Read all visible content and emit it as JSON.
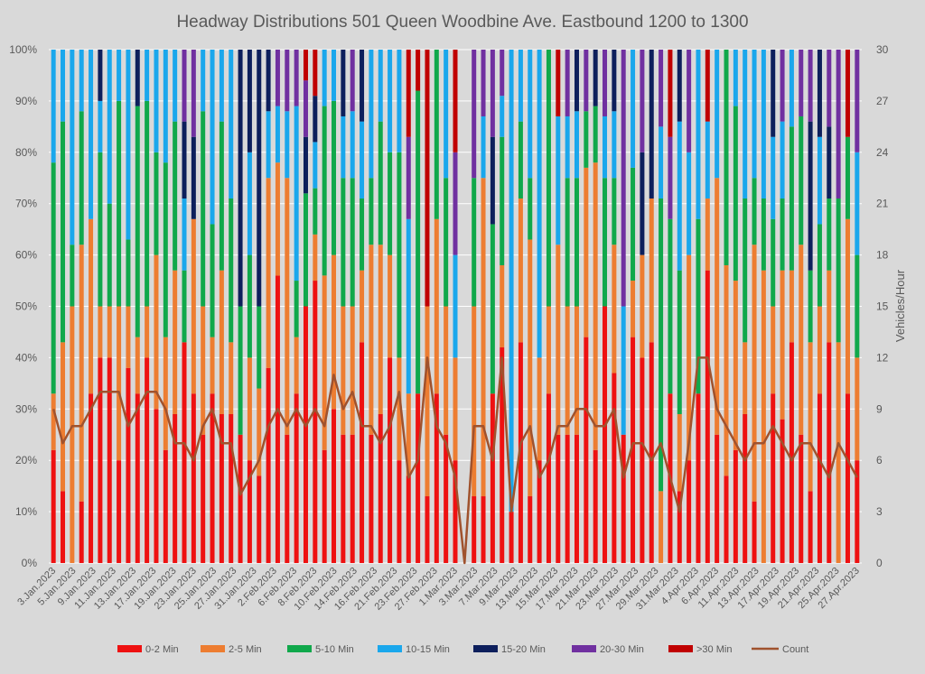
{
  "chart_data": {
    "type": "bar",
    "stacked": "percent",
    "title": "Headway Distributions 501 Queen  Woodbine Ave. Eastbound 1200 to 1300",
    "y2label": "Vehicles/Hour",
    "y_ticks": [
      "0%",
      "10%",
      "20%",
      "30%",
      "40%",
      "50%",
      "60%",
      "70%",
      "80%",
      "90%",
      "100%"
    ],
    "y2_ticks": [
      "0",
      "3",
      "6",
      "9",
      "12",
      "15",
      "18",
      "21",
      "24",
      "27",
      "30"
    ],
    "ylim": [
      0,
      100
    ],
    "y2lim": [
      0,
      30
    ],
    "grid": true,
    "legend_position": "bottom",
    "x_tick_labels": [
      "3.Jan.2023",
      "5.Jan.2023",
      "9.Jan.2023",
      "11.Jan.2023",
      "13.Jan.2023",
      "17.Jan.2023",
      "19.Jan.2023",
      "23.Jan.2023",
      "25.Jan.2023",
      "27.Jan.2023",
      "31.Jan.2023",
      "2.Feb.2023",
      "6.Feb.2023",
      "8.Feb.2023",
      "10.Feb.2023",
      "14.Feb.2023",
      "16.Feb.2023",
      "21.Feb.2023",
      "23.Feb.2023",
      "27.Feb.2023",
      "1.Mar.2023",
      "3.Mar.2023",
      "7.Mar.2023",
      "9.Mar.2023",
      "13.Mar.2023",
      "15.Mar.2023",
      "17.Mar.2023",
      "21.Mar.2023",
      "23.Mar.2023",
      "27.Mar.2023",
      "29.Mar.2023",
      "31.Mar.2023",
      "4.Apr.2023",
      "6.Apr.2023",
      "11.Apr.2023",
      "13.Apr.2023",
      "17.Apr.2023",
      "19.Apr.2023",
      "21.Apr.2023",
      "25.Apr.2023",
      "27.Apr.2023"
    ],
    "series_names": [
      "0-2 Min",
      "2-5 Min",
      "5-10 Min",
      "10-15 Min",
      "15-20 Min",
      "20-30 Min",
      ">30 Min"
    ],
    "count_label": "Count",
    "colors": [
      "#ee1111",
      "#ed7d31",
      "#10a84b",
      "#1aa7ec",
      "#0d1f5c",
      "#7030a0",
      "#c00000"
    ],
    "count_color": "#a0522d",
    "bars": [
      [
        22,
        11,
        45,
        22,
        0,
        0,
        0
      ],
      [
        14,
        29,
        43,
        14,
        0,
        0,
        0
      ],
      [
        0,
        50,
        12,
        38,
        0,
        0,
        0
      ],
      [
        12,
        50,
        26,
        12,
        0,
        0,
        0
      ],
      [
        33,
        34,
        0,
        33,
        0,
        0,
        0
      ],
      [
        40,
        10,
        30,
        10,
        10,
        0,
        0
      ],
      [
        40,
        10,
        20,
        30,
        0,
        0,
        0
      ],
      [
        20,
        30,
        40,
        10,
        0,
        0,
        0
      ],
      [
        38,
        12,
        13,
        37,
        0,
        0,
        0
      ],
      [
        33,
        11,
        45,
        0,
        11,
        0,
        0
      ],
      [
        40,
        10,
        40,
        10,
        0,
        0,
        0
      ],
      [
        30,
        30,
        20,
        20,
        0,
        0,
        0
      ],
      [
        22,
        22,
        34,
        22,
        0,
        0,
        0
      ],
      [
        29,
        28,
        29,
        14,
        0,
        0,
        0
      ],
      [
        43,
        0,
        14,
        14,
        15,
        14,
        0
      ],
      [
        33,
        34,
        0,
        0,
        16,
        17,
        0
      ],
      [
        25,
        25,
        38,
        12,
        0,
        0,
        0
      ],
      [
        33,
        11,
        22,
        34,
        0,
        0,
        0
      ],
      [
        29,
        28,
        29,
        14,
        0,
        0,
        0
      ],
      [
        29,
        14,
        28,
        29,
        0,
        0,
        0
      ],
      [
        25,
        0,
        25,
        0,
        50,
        0,
        0
      ],
      [
        20,
        20,
        20,
        20,
        20,
        0,
        0
      ],
      [
        17,
        17,
        16,
        0,
        50,
        0,
        0
      ],
      [
        38,
        37,
        0,
        13,
        12,
        0,
        0
      ],
      [
        56,
        22,
        0,
        11,
        0,
        11,
        0
      ],
      [
        25,
        50,
        0,
        13,
        0,
        12,
        0
      ],
      [
        33,
        11,
        11,
        34,
        0,
        11,
        0
      ],
      [
        50,
        0,
        22,
        0,
        11,
        11,
        6
      ],
      [
        55,
        9,
        9,
        9,
        9,
        0,
        9
      ],
      [
        22,
        34,
        33,
        11,
        0,
        0,
        0
      ],
      [
        30,
        30,
        30,
        10,
        0,
        0,
        0
      ],
      [
        25,
        25,
        25,
        12,
        13,
        0,
        0
      ],
      [
        25,
        25,
        25,
        13,
        0,
        12,
        0
      ],
      [
        43,
        14,
        14,
        15,
        14,
        0,
        0
      ],
      [
        25,
        37,
        13,
        25,
        0,
        0,
        0
      ],
      [
        29,
        33,
        24,
        14,
        0,
        0,
        0
      ],
      [
        40,
        20,
        20,
        20,
        0,
        0,
        0
      ],
      [
        20,
        20,
        40,
        20,
        0,
        0,
        0
      ],
      [
        17,
        16,
        0,
        34,
        0,
        16,
        17
      ],
      [
        33,
        0,
        59,
        0,
        0,
        0,
        8
      ],
      [
        13,
        37,
        0,
        0,
        0,
        0,
        50
      ],
      [
        33,
        34,
        33,
        0,
        0,
        0,
        0
      ],
      [
        25,
        25,
        25,
        25,
        0,
        0,
        0
      ],
      [
        20,
        20,
        0,
        20,
        0,
        20,
        20
      ],
      [
        0,
        0,
        0,
        0,
        0,
        0,
        0
      ],
      [
        13,
        37,
        25,
        0,
        0,
        25,
        0
      ],
      [
        13,
        62,
        0,
        12,
        0,
        13,
        0
      ],
      [
        33,
        0,
        33,
        0,
        17,
        17,
        0
      ],
      [
        42,
        16,
        25,
        8,
        0,
        9,
        0
      ],
      [
        10,
        0,
        0,
        90,
        0,
        0,
        0
      ],
      [
        43,
        28,
        15,
        14,
        0,
        0,
        0
      ],
      [
        13,
        50,
        12,
        25,
        0,
        0,
        0
      ],
      [
        20,
        20,
        0,
        60,
        0,
        0,
        0
      ],
      [
        33,
        17,
        50,
        0,
        0,
        0,
        0
      ],
      [
        25,
        37,
        0,
        25,
        0,
        0,
        13
      ],
      [
        25,
        25,
        25,
        12,
        0,
        13,
        0
      ],
      [
        25,
        25,
        25,
        13,
        12,
        0,
        0
      ],
      [
        44,
        33,
        11,
        0,
        0,
        12,
        0
      ],
      [
        22,
        56,
        11,
        0,
        11,
        0,
        0
      ],
      [
        50,
        0,
        25,
        12,
        0,
        13,
        0
      ],
      [
        37,
        25,
        13,
        13,
        12,
        0,
        0
      ],
      [
        25,
        0,
        0,
        25,
        0,
        50,
        0
      ],
      [
        44,
        11,
        22,
        23,
        0,
        0,
        0
      ],
      [
        40,
        20,
        0,
        0,
        20,
        20,
        0
      ],
      [
        43,
        28,
        0,
        0,
        29,
        0,
        0
      ],
      [
        0,
        14,
        57,
        14,
        0,
        15,
        0
      ],
      [
        33,
        0,
        34,
        0,
        0,
        16,
        17
      ],
      [
        14,
        15,
        28,
        29,
        14,
        0,
        0
      ],
      [
        20,
        40,
        0,
        20,
        0,
        20,
        0
      ],
      [
        33,
        0,
        34,
        33,
        0,
        0,
        0
      ],
      [
        57,
        14,
        0,
        15,
        0,
        0,
        14
      ],
      [
        25,
        50,
        0,
        25,
        0,
        0,
        0
      ],
      [
        17,
        41,
        42,
        0,
        0,
        0,
        0
      ],
      [
        22,
        33,
        34,
        11,
        0,
        0,
        0
      ],
      [
        29,
        14,
        28,
        29,
        0,
        0,
        0
      ],
      [
        12,
        50,
        13,
        25,
        0,
        0,
        0
      ],
      [
        0,
        57,
        14,
        29,
        0,
        0,
        0
      ],
      [
        33,
        17,
        17,
        16,
        17,
        0,
        0
      ],
      [
        28,
        29,
        14,
        15,
        0,
        14,
        0
      ],
      [
        43,
        14,
        28,
        15,
        0,
        0,
        0
      ],
      [
        25,
        37,
        25,
        0,
        0,
        13,
        0
      ],
      [
        14,
        29,
        14,
        0,
        29,
        14,
        0
      ],
      [
        33,
        17,
        16,
        17,
        17,
        0,
        0
      ],
      [
        43,
        14,
        14,
        0,
        14,
        15,
        0
      ],
      [
        0,
        43,
        28,
        0,
        0,
        29,
        0
      ],
      [
        33,
        34,
        16,
        0,
        0,
        0,
        17
      ],
      [
        20,
        20,
        20,
        20,
        0,
        20,
        0
      ]
    ],
    "counts": [
      9,
      7,
      8,
      8,
      9,
      10,
      10,
      10,
      8,
      9,
      10,
      10,
      9,
      7,
      7,
      6,
      8,
      9,
      7,
      7,
      4,
      5,
      6,
      8,
      9,
      8,
      9,
      8,
      9,
      8,
      11,
      9,
      10,
      8,
      8,
      7,
      8,
      10,
      5,
      6,
      12,
      8,
      7,
      5,
      0,
      8,
      8,
      6,
      12,
      3,
      7,
      8,
      5,
      6,
      8,
      8,
      9,
      9,
      8,
      8,
      9,
      5,
      7,
      7,
      6,
      7,
      5,
      3,
      7,
      12,
      12,
      9,
      8,
      7,
      6,
      7,
      7,
      8,
      7,
      6,
      7,
      7,
      6,
      5,
      7,
      6,
      5
    ]
  }
}
